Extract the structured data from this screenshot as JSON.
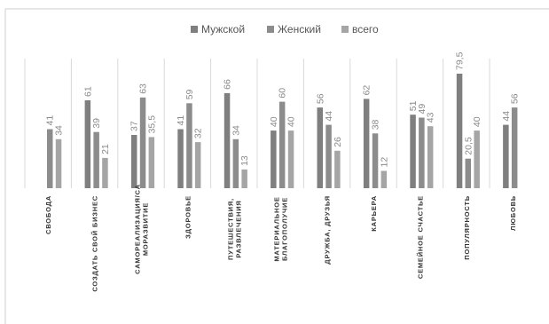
{
  "chart_data": {
    "type": "bar",
    "title": "",
    "xlabel": "",
    "ylabel": "",
    "ylim": [
      0,
      85
    ],
    "legend_position": "top-center",
    "grid": false,
    "categories": [
      [
        "СВОБОДА"
      ],
      [
        "СОЗДАТЬ СВОЙ БИЗНЕС"
      ],
      [
        "САМОРЕАЛИЗАЦИЯ/СА",
        "МОРАЗВИТИЕ"
      ],
      [
        "ЗДОРОВЬЕ"
      ],
      [
        "ПУТЕШЕСТВИЯ,",
        "РАЗВЛЕЧЕНИЯ"
      ],
      [
        "МАТЕРИАЛЬНОЕ",
        "БЛАГОПОЛУЧИЕ"
      ],
      [
        "ДРУЖБА, ДРУЗЬЯ"
      ],
      [
        "КАРЬЕРА"
      ],
      [
        "СЕМЕЙНОЕ СЧАСТЬЕ"
      ],
      [
        "ПОПУЛЯРНОСТЬ"
      ],
      [
        "ЛЮБОВЬ"
      ]
    ],
    "series": [
      {
        "name": "Мужской",
        "color": "#7f7f7f",
        "values": [
          null,
          61,
          37,
          41,
          66,
          40,
          56,
          62,
          51,
          79.5,
          44
        ],
        "labels": [
          "",
          "61",
          "37",
          "41",
          "66",
          "40",
          "56",
          "62",
          "51",
          "79,5",
          "44"
        ]
      },
      {
        "name": "Женский",
        "color": "#8c8c8c",
        "values": [
          41,
          39,
          63,
          59,
          34,
          60,
          44,
          38,
          49,
          20.5,
          56
        ],
        "labels": [
          "41",
          "39",
          "63",
          "59",
          "34",
          "60",
          "44",
          "38",
          "49",
          "20,5",
          "56"
        ]
      },
      {
        "name": "всего",
        "color": "#a5a5a5",
        "values": [
          34,
          21,
          35.5,
          32,
          13,
          40,
          26,
          12,
          43,
          40,
          null
        ],
        "labels": [
          "34",
          "21",
          "35,5",
          "32",
          "13",
          "40",
          "26",
          "12",
          "43",
          "40",
          ""
        ]
      }
    ]
  }
}
